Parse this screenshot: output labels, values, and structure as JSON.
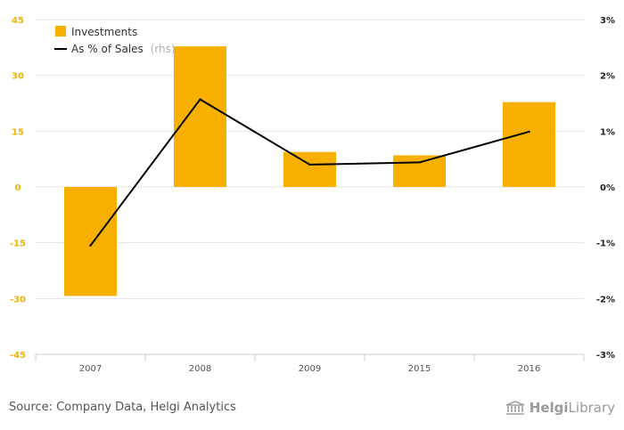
{
  "chart_data": {
    "type": "bar",
    "categories": [
      "2007",
      "2008",
      "2009",
      "2015",
      "2016"
    ],
    "series": [
      {
        "name": "Investments",
        "type": "bar",
        "axis": "left",
        "values": [
          -29.3,
          37.8,
          9.4,
          8.5,
          22.8
        ],
        "color": "#f7b000"
      },
      {
        "name": "As % of Sales",
        "name_suffix": "(rhs)",
        "type": "line",
        "axis": "right",
        "values": [
          -1.05,
          1.57,
          0.4,
          0.44,
          0.99
        ],
        "color": "#000000"
      }
    ],
    "y_left": {
      "ticks": [
        "45",
        "30",
        "15",
        "0",
        "-15",
        "-30",
        "-45"
      ],
      "ylim": [
        -45,
        45
      ]
    },
    "y_right": {
      "ticks": [
        "3%",
        "2%",
        "1%",
        "0%",
        "-1%",
        "-2%",
        "-3%"
      ],
      "ylim": [
        -3,
        3
      ]
    },
    "grid": true,
    "legend_position": "top-left"
  },
  "source_text": "Source: Company Data, Helgi Analytics",
  "brand": {
    "name_part1": "Helgi",
    "name_part2": "Library"
  }
}
